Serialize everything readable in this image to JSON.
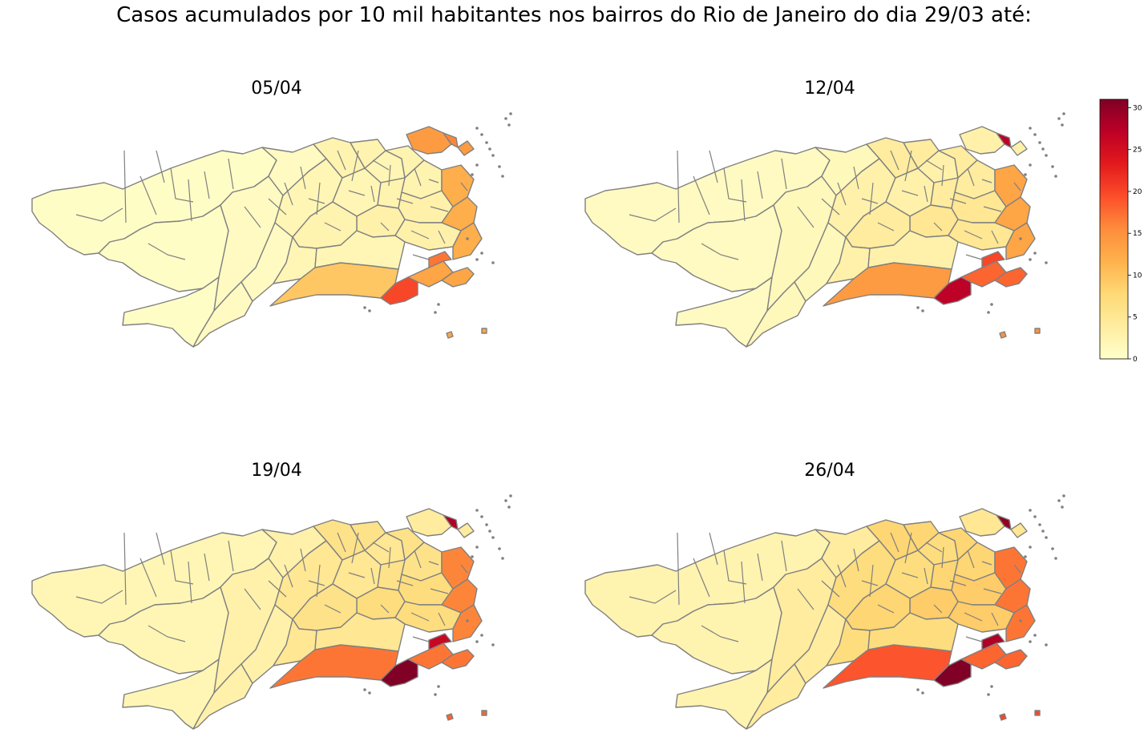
{
  "title": "Casos acumulados por 10 mil habitantes nos bairros do Rio de Janeiro do dia 29/03 até:",
  "panels": [
    {
      "title": "05/04",
      "levels": {
        "west": 0.5,
        "mid_west": 1.0,
        "center": 2.0,
        "north": 2.5,
        "north_misc": 3.0,
        "barra": 9.5,
        "south": 20.0,
        "south_east": 13.0,
        "zs_small": 17.0,
        "island": 14.0,
        "island_spot": 16.0,
        "islands_south": 13.0,
        "east_north": 12.0
      }
    },
    {
      "title": "12/04",
      "levels": {
        "west": 1.0,
        "mid_west": 1.5,
        "center": 3.0,
        "north": 4.0,
        "north_misc": 5.0,
        "barra": 14.0,
        "south": 27.0,
        "south_east": 18.0,
        "zs_small": 20.0,
        "island": 3.0,
        "island_spot": 27.0,
        "islands_south": 15.0,
        "east_north": 13.0
      }
    },
    {
      "title": "19/04",
      "levels": {
        "west": 2.0,
        "mid_west": 3.0,
        "center": 5.0,
        "north": 6.0,
        "north_misc": 7.0,
        "barra": 17.0,
        "south": 31.0,
        "south_east": 17.0,
        "zs_small": 26.0,
        "island": 4.0,
        "island_spot": 28.0,
        "islands_south": 18.0,
        "east_north": 16.0
      }
    },
    {
      "title": "26/04",
      "levels": {
        "west": 2.5,
        "mid_west": 4.0,
        "center": 7.0,
        "north": 8.0,
        "north_misc": 9.0,
        "barra": 19.0,
        "south": 31.0,
        "south_east": 18.0,
        "zs_small": 28.0,
        "island": 5.0,
        "island_spot": 30.0,
        "islands_south": 20.0,
        "east_north": 17.0
      }
    }
  ],
  "colorbar": {
    "colormap": "YlOrRd",
    "min": 0,
    "max": 31,
    "ticks": [
      "0",
      "5",
      "10",
      "15",
      "20",
      "25",
      "30"
    ],
    "tick_values": [
      0,
      5,
      10,
      15,
      20,
      25,
      30
    ],
    "colors": [
      "#ffffcc",
      "#ffeda0",
      "#fed976",
      "#feb24c",
      "#fd8d3c",
      "#fc4e2a",
      "#e31a1c",
      "#bd0026",
      "#800026"
    ]
  },
  "border_color": "#808080"
}
